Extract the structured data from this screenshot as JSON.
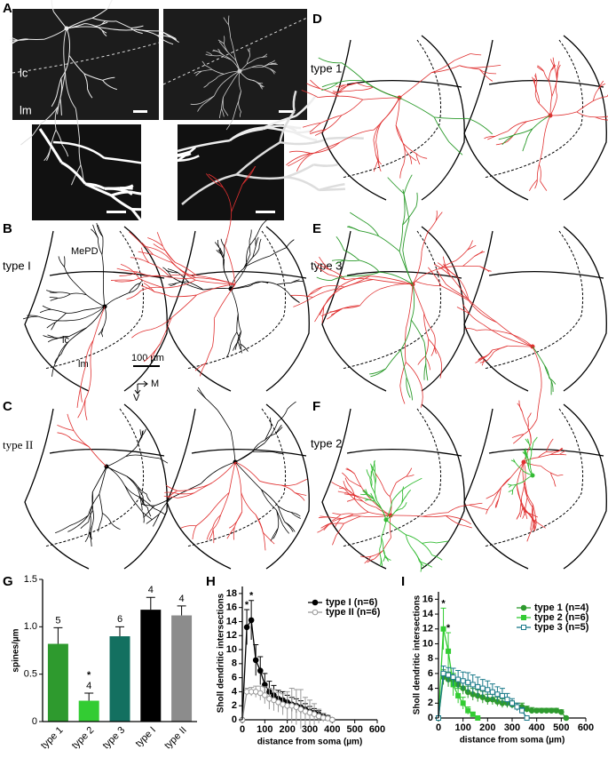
{
  "panels": [
    {
      "letter": "A",
      "labels": [
        "lc",
        "lm"
      ]
    },
    {
      "letter": "B",
      "labels": [
        "type I",
        "MePD",
        "lc",
        "lm",
        "100 µm",
        "M",
        "V"
      ]
    },
    {
      "letter": "C",
      "labels": [
        "type II"
      ]
    },
    {
      "letter": "D",
      "labels": [
        "type 1"
      ]
    },
    {
      "letter": "E",
      "labels": [
        "type 3"
      ]
    },
    {
      "letter": "F",
      "labels": [
        "type 2"
      ]
    }
  ],
  "chart_data": [
    {
      "type": "bar",
      "panel": "G",
      "ylabel": "spines/µm",
      "categories": [
        "type 1",
        "type 2",
        "type 3",
        "type I",
        "type II"
      ],
      "values": [
        0.82,
        0.22,
        0.9,
        1.18,
        1.12
      ],
      "errors": [
        0.17,
        0.08,
        0.1,
        0.13,
        0.1
      ],
      "n_labels": [
        "5",
        "4",
        "6",
        "4",
        "4"
      ],
      "colors": [
        "#2e9a2e",
        "#33cc33",
        "#137060",
        "#000000",
        "#8c8c8c"
      ],
      "annotations": [
        {
          "text": "*",
          "category": 1
        }
      ],
      "ylim": [
        0,
        1.5
      ],
      "yticks": [
        0,
        0.5,
        {
          "value": 1,
          "label": "1.0"
        },
        1.5
      ]
    },
    {
      "type": "line",
      "panel": "H",
      "xlabel": "distance from soma (µm)",
      "ylabel": "Sholl dendritic intersections",
      "x": [
        0,
        20,
        40,
        60,
        80,
        100,
        120,
        140,
        160,
        180,
        200,
        220,
        240,
        260,
        280,
        300,
        320,
        340,
        360,
        380,
        400
      ],
      "series": [
        {
          "name": "type I (n=6)",
          "color": "#000000",
          "marker": "circle",
          "fill": "#000000",
          "values": [
            0,
            13.2,
            14.2,
            8.5,
            7,
            5,
            4,
            3.5,
            3,
            2.8,
            2.5,
            2.2,
            2,
            1.8,
            1.5,
            1.2,
            1,
            0.8,
            0.5,
            0.3,
            0
          ],
          "errors": [
            0,
            2.5,
            2.8,
            2.2,
            2,
            1.6,
            1.5,
            1.4,
            1.2,
            1.2,
            1,
            1,
            1,
            0.9,
            0.8,
            0.7,
            0.6,
            0.5,
            0.4,
            0.3,
            0
          ]
        },
        {
          "name": "type II (n=6)",
          "color": "#9a9a9a",
          "marker": "circle",
          "fill": "#ffffff",
          "values": [
            0,
            4,
            4,
            4,
            3.8,
            3.5,
            3,
            2.8,
            2.5,
            2.2,
            2,
            2,
            1.8,
            1.5,
            1.2,
            1,
            0.8,
            0.5,
            0.3,
            0.2,
            0
          ],
          "errors": [
            0,
            0.5,
            0.6,
            0.8,
            1,
            1.2,
            1.5,
            1.5,
            1.4,
            1.5,
            2,
            2.5,
            2.5,
            2.8,
            2,
            1.8,
            1.5,
            1,
            0.6,
            0.3,
            0
          ]
        }
      ],
      "annotations": [
        {
          "text": "*",
          "x": 20
        },
        {
          "text": "*",
          "x": 40
        }
      ],
      "xlim": [
        0,
        600
      ],
      "xticks": [
        0,
        100,
        200,
        300,
        400,
        500,
        600
      ],
      "ylim": [
        0,
        19
      ],
      "yticks": [
        0,
        2,
        4,
        6,
        8,
        10,
        12,
        14,
        16,
        18
      ],
      "legend": "upper right"
    },
    {
      "type": "line",
      "panel": "I",
      "xlabel": "distance from soma (µm)",
      "ylabel": "Sholl dendritic intersections",
      "x": [
        0,
        20,
        40,
        60,
        80,
        100,
        120,
        140,
        160,
        180,
        200,
        220,
        240,
        260,
        280,
        300,
        320,
        340,
        360,
        380,
        400,
        420,
        440,
        460,
        480,
        500,
        520
      ],
      "series": [
        {
          "name": "type 1 (n=4)",
          "color": "#2e9a2e",
          "marker": "circle",
          "fill": "#2e9a2e",
          "values": [
            0,
            5.5,
            5.2,
            5,
            4.5,
            4,
            3.5,
            3.2,
            3,
            2.8,
            2.5,
            2.5,
            2.2,
            2,
            2,
            1.8,
            1.5,
            1.5,
            1.2,
            1,
            1,
            1,
            1,
            1,
            1,
            0.8,
            0
          ],
          "errors": [
            0,
            1,
            1,
            1,
            0.8,
            0.8,
            0.8,
            0.8,
            0.8,
            0.8,
            0.7,
            0.7,
            0.6,
            0.6,
            0.6,
            0.5,
            0.5,
            0.5,
            0.4,
            0.4,
            0.3,
            0.3,
            0.3,
            0.3,
            0.3,
            0.3,
            0
          ]
        },
        {
          "name": "type 2 (n=6)",
          "color": "#33cc33",
          "marker": "square",
          "fill": "#33cc33",
          "values": [
            0,
            12,
            9,
            4.5,
            3,
            2,
            1,
            0.5,
            0,
            null,
            null,
            null,
            null,
            null,
            null,
            null,
            null,
            null,
            null,
            null,
            null,
            null,
            null,
            null,
            null,
            null,
            null
          ],
          "errors": [
            0,
            2.8,
            2.5,
            1.5,
            1,
            0.8,
            0.5,
            0.3,
            0,
            null,
            null,
            null,
            null,
            null,
            null,
            null,
            null,
            null,
            null,
            null,
            null,
            null,
            null,
            null,
            null,
            null,
            null
          ]
        },
        {
          "name": "type 3 (n=5)",
          "color": "#1a7a8a",
          "marker": "square",
          "fill": "#ffffff",
          "values": [
            0,
            6,
            5.8,
            5.5,
            5.2,
            5,
            4.8,
            4.5,
            4.2,
            4,
            3.8,
            3.5,
            3.2,
            3,
            2.5,
            2,
            1.5,
            1,
            0,
            null,
            null,
            null,
            null,
            null,
            null,
            null,
            null
          ],
          "errors": [
            0,
            1,
            1,
            1.2,
            1.2,
            1.2,
            1.3,
            1.3,
            1.3,
            1.2,
            1.2,
            1.1,
            1,
            1,
            0.8,
            0.6,
            0.5,
            0.4,
            0,
            null,
            null,
            null,
            null,
            null,
            null,
            null,
            null
          ]
        }
      ],
      "annotations": [
        {
          "text": "*",
          "x": 20
        },
        {
          "text": "*",
          "x": 40
        }
      ],
      "xlim": [
        0,
        600
      ],
      "xticks": [
        0,
        100,
        200,
        300,
        400,
        500,
        600
      ],
      "ylim": [
        0,
        17
      ],
      "yticks": [
        0,
        2,
        4,
        6,
        8,
        10,
        12,
        14,
        16
      ],
      "legend": "upper right"
    }
  ]
}
